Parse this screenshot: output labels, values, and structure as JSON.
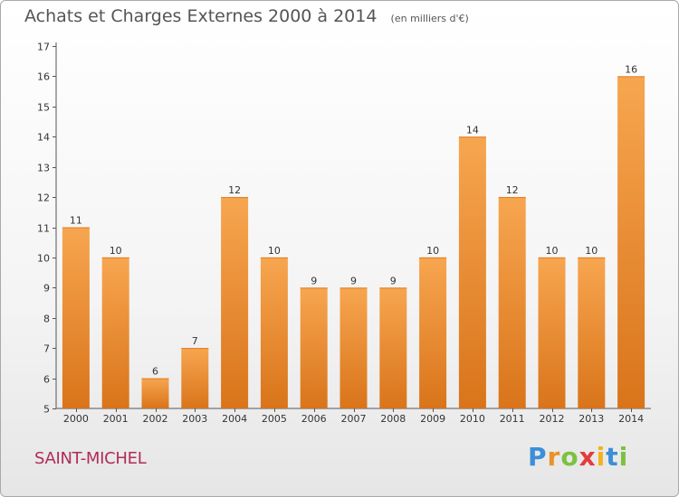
{
  "title": "Achats et Charges Externes 2000 à 2014",
  "unit": "(en milliers d'€)",
  "commune": "SAINT-MICHEL",
  "logo": {
    "letters": [
      "P",
      "r",
      "o",
      "x",
      "i",
      "t",
      "i"
    ],
    "colors": [
      "#3a8fd8",
      "#e8922a",
      "#7cc242",
      "#e33b3b",
      "#f2b21b",
      "#3a8fd8",
      "#7cc242"
    ]
  },
  "colors": {
    "bar_top": "#f7a650",
    "bar_bottom": "#d9741a",
    "axis": "#555555",
    "text": "#333333"
  },
  "chart_data": {
    "type": "bar",
    "categories": [
      "2000",
      "2001",
      "2002",
      "2003",
      "2004",
      "2005",
      "2006",
      "2007",
      "2008",
      "2009",
      "2010",
      "2011",
      "2012",
      "2013",
      "2014"
    ],
    "values": [
      11,
      10,
      6,
      7,
      12,
      10,
      9,
      9,
      9,
      10,
      14,
      12,
      10,
      10,
      16
    ],
    "ylim": [
      5,
      17
    ],
    "yticks": [
      5,
      6,
      7,
      8,
      9,
      10,
      11,
      12,
      13,
      14,
      15,
      16,
      17
    ],
    "grid": false
  }
}
